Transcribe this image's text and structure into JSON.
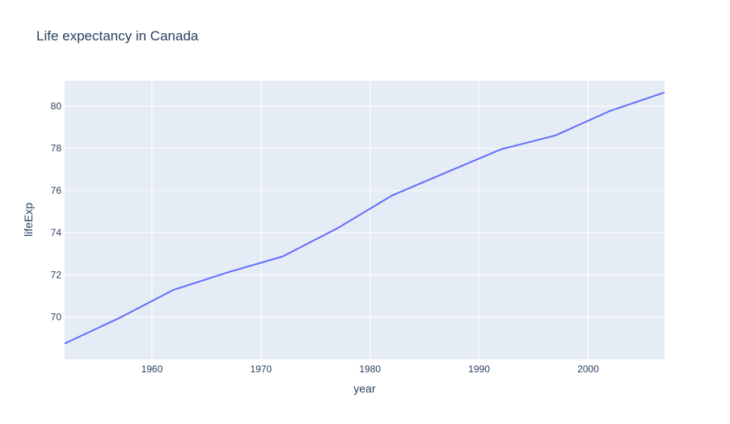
{
  "chart_data": {
    "type": "line",
    "title": "Life expectancy in Canada",
    "xlabel": "year",
    "ylabel": "lifeExp",
    "xlim": [
      1952,
      2007
    ],
    "ylim": [
      68.0,
      81.2
    ],
    "x_ticks": [
      1960,
      1970,
      1980,
      1990,
      2000
    ],
    "y_ticks": [
      70,
      72,
      74,
      76,
      78,
      80
    ],
    "grid": true,
    "background_color": "#e5ecf6",
    "gridline_color": "#ffffff",
    "text_color": "#2a3f5f",
    "series": [
      {
        "color": "#636efa",
        "x": [
          1952,
          1957,
          1962,
          1967,
          1972,
          1977,
          1982,
          1987,
          1992,
          1997,
          2002,
          2007
        ],
        "values": [
          68.75,
          69.96,
          71.3,
          72.13,
          72.88,
          74.21,
          75.76,
          76.86,
          77.95,
          78.61,
          79.77,
          80.65
        ]
      }
    ]
  }
}
